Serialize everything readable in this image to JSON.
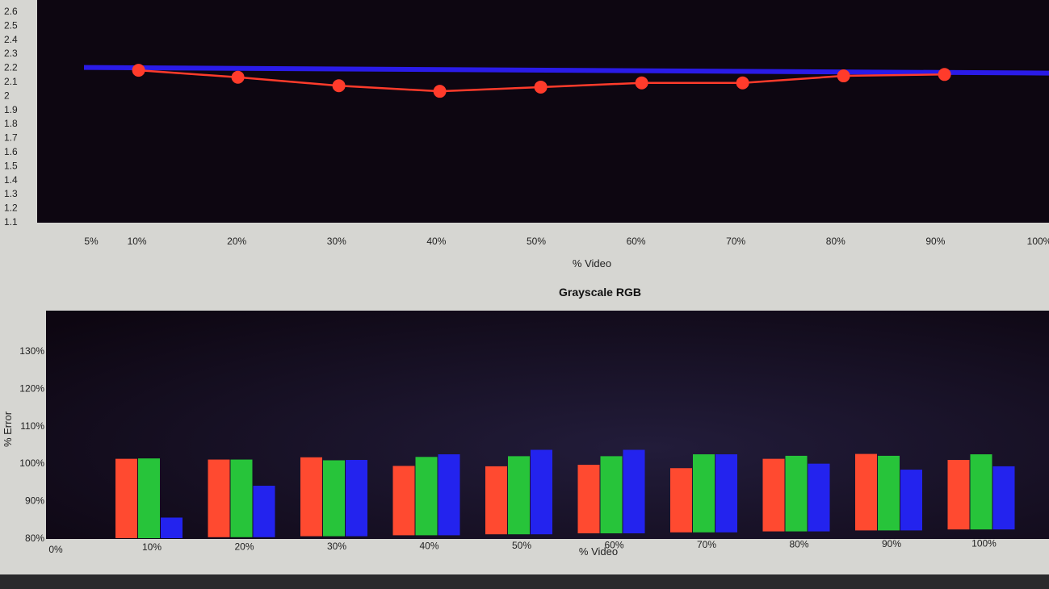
{
  "colors": {
    "plot_bg": "#0d0611",
    "plot_bg2": "#221c3a",
    "panel": "#d6d6d2",
    "target_line": "#2a1be8",
    "measured_line": "#ff3b2b",
    "red_bar": "#ff4a30",
    "green_bar": "#27c43a",
    "blue_bar": "#2323ee"
  },
  "chart_data": [
    {
      "type": "line",
      "title": "",
      "xlabel": "% Video",
      "ylabel": "",
      "x_ticks": [
        "5%",
        "10%",
        "20%",
        "30%",
        "40%",
        "50%",
        "60%",
        "70%",
        "80%",
        "90%",
        "100%"
      ],
      "y_ticks": [
        "2.6",
        "2.5",
        "2.4",
        "2.3",
        "2.2",
        "2.1",
        "2",
        "1.9",
        "1.8",
        "1.7",
        "1.6",
        "1.5",
        "1.4",
        "1.3",
        "1.2",
        "1.1"
      ],
      "xlim": [
        0,
        100
      ],
      "ylim": [
        1.1,
        2.6
      ],
      "series": [
        {
          "values": [
            2.2,
            2.2
          ],
          "x": [
            5,
            100
          ],
          "role": "target"
        },
        {
          "x": [
            10,
            20,
            30,
            40,
            50,
            60,
            70,
            80,
            90
          ],
          "values": [
            2.18,
            2.13,
            2.07,
            2.03,
            2.06,
            2.09,
            2.09,
            2.14,
            2.15
          ],
          "role": "measured"
        }
      ]
    },
    {
      "type": "bar",
      "title": "Grayscale RGB",
      "xlabel": "% Video",
      "ylabel": "% Error",
      "categories": [
        "10%",
        "20%",
        "30%",
        "40%",
        "50%",
        "60%",
        "70%",
        "80%",
        "90%",
        "100%"
      ],
      "x_start_label": "0%",
      "y_ticks": [
        "130%",
        "120%",
        "110%",
        "100%",
        "90%",
        "80%"
      ],
      "ylim": [
        80,
        138
      ],
      "series": [
        {
          "values": [
            101.2,
            101.0,
            101.6,
            99.3,
            99.2,
            99.6,
            98.7,
            101.2,
            102.5,
            100.9
          ],
          "color_key": "red_bar"
        },
        {
          "values": [
            101.3,
            101.0,
            100.8,
            101.7,
            101.9,
            101.9,
            102.4,
            102.0,
            102.0,
            102.4
          ],
          "color_key": "green_bar"
        },
        {
          "values": [
            85.5,
            94.0,
            100.9,
            102.4,
            103.6,
            103.6,
            102.4,
            99.9,
            98.3,
            99.2
          ],
          "color_key": "blue_bar"
        }
      ]
    }
  ]
}
